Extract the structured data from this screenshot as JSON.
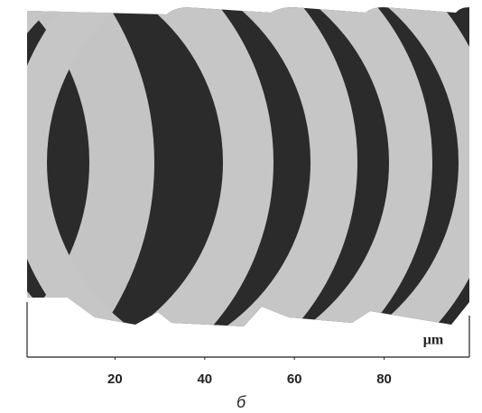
{
  "chart_data": {
    "type": "micrograph",
    "x_unit": "μm",
    "xlim": [
      0,
      99
    ],
    "xticks": [
      20,
      40,
      60,
      80
    ],
    "caption": "б"
  }
}
